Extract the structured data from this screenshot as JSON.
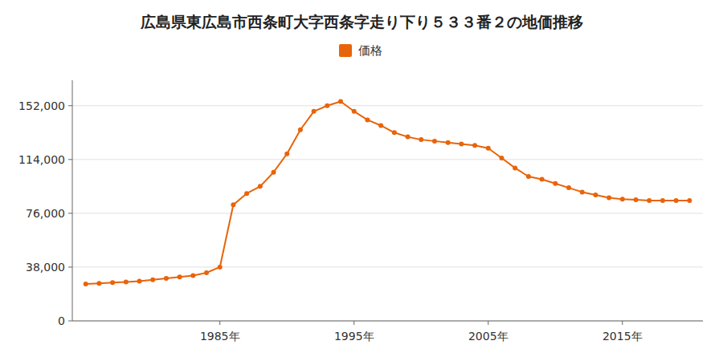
{
  "chart_data": {
    "type": "line",
    "title": "広島県東広島市西条町大字西条字走り下り５３３番２の地価推移",
    "x": [
      1975,
      1976,
      1977,
      1978,
      1979,
      1980,
      1981,
      1982,
      1983,
      1984,
      1985,
      1986,
      1987,
      1988,
      1989,
      1990,
      1991,
      1992,
      1993,
      1994,
      1995,
      1996,
      1997,
      1998,
      1999,
      2000,
      2001,
      2002,
      2003,
      2004,
      2005,
      2006,
      2007,
      2008,
      2009,
      2010,
      2011,
      2012,
      2013,
      2014,
      2015,
      2016,
      2017,
      2018,
      2019,
      2020
    ],
    "series": [
      {
        "name": "価格",
        "color": "#E8640A",
        "marker": "circle",
        "values": [
          26000,
          26500,
          27000,
          27500,
          28000,
          29000,
          30000,
          31000,
          32000,
          34000,
          38000,
          82000,
          90000,
          95000,
          105000,
          118000,
          135000,
          148000,
          152000,
          155000,
          148000,
          142000,
          138000,
          133000,
          130000,
          128000,
          127000,
          126000,
          125000,
          124000,
          122000,
          115000,
          108000,
          102000,
          100000,
          97000,
          94000,
          91000,
          89000,
          87000,
          86000,
          85500,
          85000,
          85000,
          85000,
          85000
        ]
      }
    ],
    "xlim": [
      1974,
      2021
    ],
    "xticks": [
      {
        "value": 1985,
        "label": "1985年"
      },
      {
        "value": 1995,
        "label": "1995年"
      },
      {
        "value": 2005,
        "label": "2005年"
      },
      {
        "value": 2015,
        "label": "2015年"
      }
    ],
    "ylim": [
      0,
      170000
    ],
    "yticks": [
      0,
      {
        "value": 38000,
        "label": "38,000"
      },
      {
        "value": 76000,
        "label": "76,000"
      },
      {
        "value": 114000,
        "label": "114,000"
      },
      {
        "value": 152000,
        "label": "152,000"
      }
    ],
    "grid": true,
    "legend": "top"
  }
}
